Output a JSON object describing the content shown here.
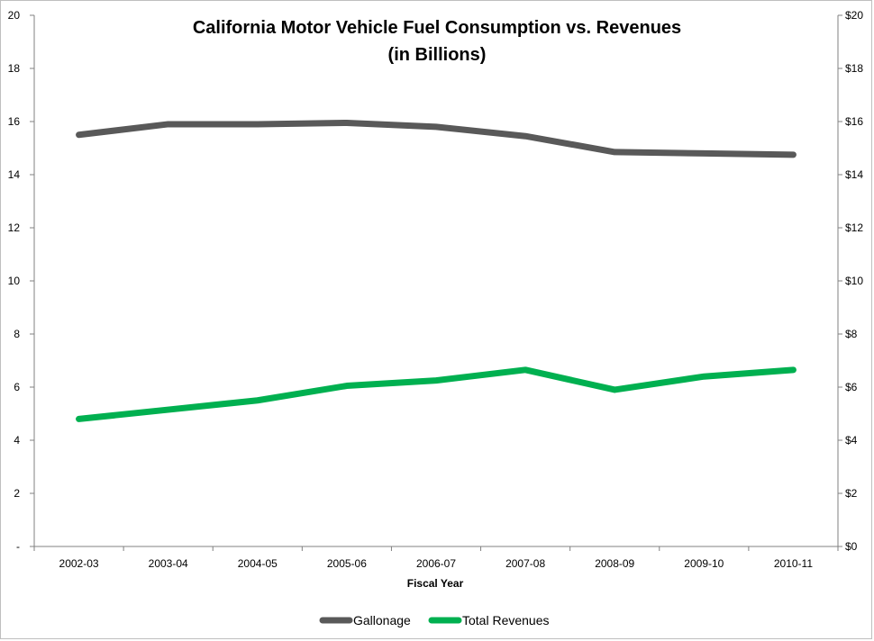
{
  "chart_data": {
    "type": "line",
    "title": "California Motor Vehicle Fuel Consumption vs. Revenues",
    "subtitle": "(in Billions)",
    "xlabel": "Fiscal Year",
    "ylabel": "",
    "categories": [
      "2002-03",
      "2003-04",
      "2004-05",
      "2005-06",
      "2006-07",
      "2007-08",
      "2008-09",
      "2009-10",
      "2010-11"
    ],
    "y_left": {
      "min": 0,
      "max": 20,
      "step": 2,
      "tick_labels": [
        "-",
        "2",
        "4",
        "6",
        "8",
        "10",
        "12",
        "14",
        "16",
        "18",
        "20"
      ]
    },
    "y_right": {
      "min": 0,
      "max": 20,
      "step": 2,
      "tick_labels": [
        "$0",
        "$2",
        "$4",
        "$6",
        "$8",
        "$10",
        "$12",
        "$14",
        "$16",
        "$18",
        "$20"
      ]
    },
    "grid": false,
    "legend_position": "bottom",
    "series": [
      {
        "name": "Gallonage",
        "axis": "left",
        "color": "#595959",
        "values": [
          15.5,
          15.9,
          15.9,
          15.95,
          15.8,
          15.45,
          14.85,
          14.8,
          14.75
        ]
      },
      {
        "name": "Total Revenues",
        "axis": "right",
        "color": "#00b050",
        "values": [
          4.8,
          5.15,
          5.5,
          6.05,
          6.25,
          6.65,
          5.9,
          6.4,
          6.65
        ]
      }
    ]
  }
}
